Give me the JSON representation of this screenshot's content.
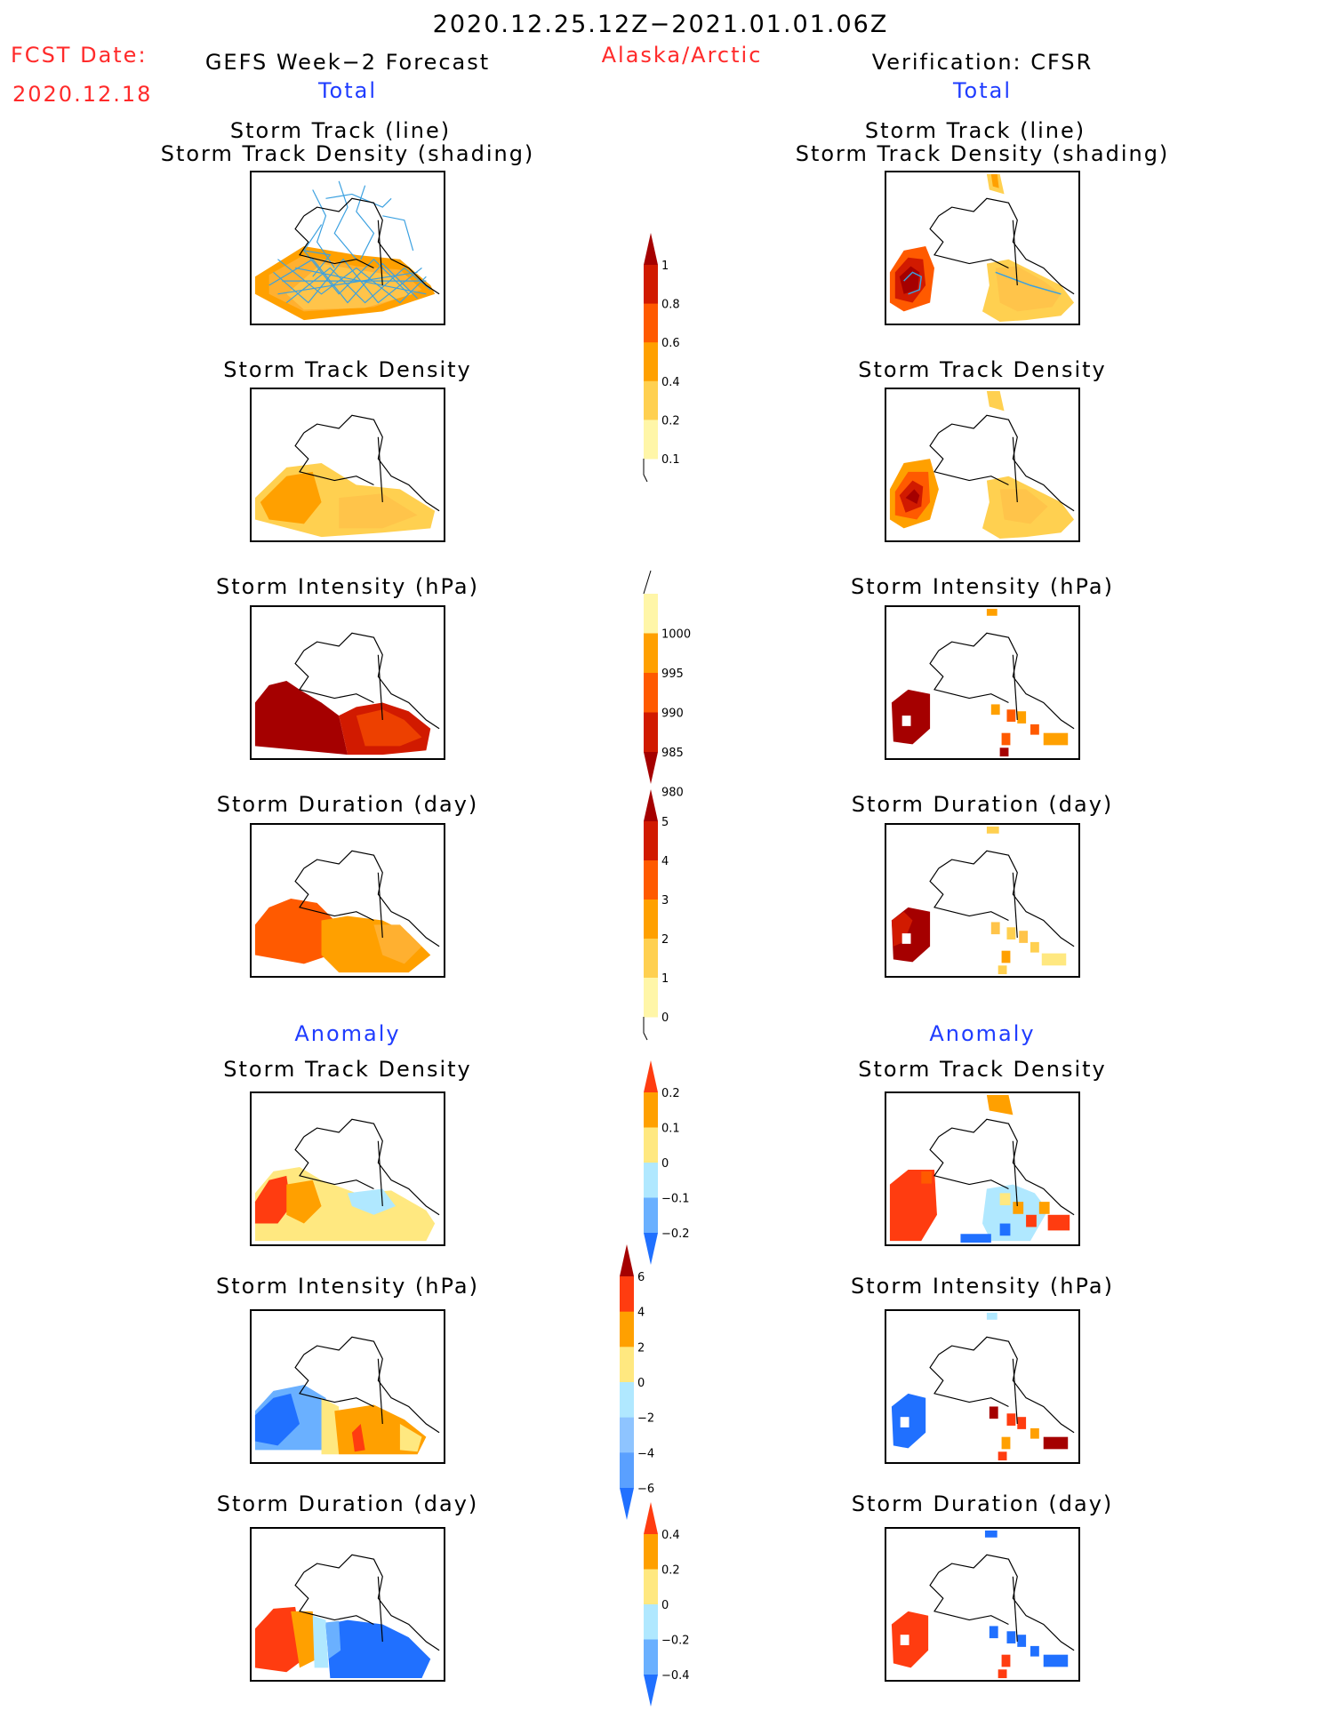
{
  "header": {
    "title": "2020.12.25.12Z−2021.01.01.06Z",
    "fcst_label": "FCST Date:",
    "fcst_date": "2020.12.18",
    "left_title": "GEFS Week−2 Forecast",
    "region": "Alaska/Arctic",
    "right_title": "Verification: CFSR"
  },
  "columns": {
    "total_label": "Total",
    "anomaly_label": "Anomaly"
  },
  "panels": {
    "track_title_1": "Storm Track (line)",
    "track_title_2": "Storm Track Density (shading)",
    "density_title": "Storm Track Density",
    "intensity_title": "Storm Intensity (hPa)",
    "duration_title": "Storm Duration (day)"
  },
  "colorbars": [
    {
      "id": "density",
      "labels": [
        "1",
        "0.8",
        "0.6",
        "0.4",
        "0.2",
        "0.1"
      ],
      "colors": [
        "#a50000",
        "#d11a00",
        "#ff5a00",
        "#ffa000",
        "#ffd050",
        "#fff6a8"
      ]
    },
    {
      "id": "intensity",
      "labels": [
        "1000",
        "995",
        "990",
        "985",
        "980"
      ],
      "colors": [
        "#fff6a8",
        "#ffa000",
        "#ff5a00",
        "#d11a00",
        "#a50000"
      ]
    },
    {
      "id": "duration",
      "labels": [
        "5",
        "4",
        "3",
        "2",
        "1",
        "0"
      ],
      "colors": [
        "#a50000",
        "#d11a00",
        "#ff5a00",
        "#ffa000",
        "#ffd050",
        "#fff6a8"
      ]
    },
    {
      "id": "anom_density",
      "labels": [
        "0.2",
        "0.1",
        "0",
        "−0.1",
        "−0.2"
      ],
      "colors": [
        "#ff3c10",
        "#ffa000",
        "#ffe880",
        "#b0e8ff",
        "#6ab0ff",
        "#2070ff"
      ]
    },
    {
      "id": "anom_intensity",
      "labels": [
        "6",
        "4",
        "2",
        "0",
        "−2",
        "−4",
        "−6"
      ],
      "colors": [
        "#a50000",
        "#ff3c10",
        "#ffa000",
        "#ffe880",
        "#b0e8ff",
        "#8ec4ff",
        "#5aa0ff",
        "#2070ff"
      ]
    },
    {
      "id": "anom_duration",
      "labels": [
        "0.4",
        "0.2",
        "0",
        "−0.2",
        "−0.4"
      ],
      "colors": [
        "#ff3c10",
        "#ffa000",
        "#ffe880",
        "#b0e8ff",
        "#6ab0ff",
        "#2070ff"
      ]
    }
  ],
  "colors": {
    "title_red": "#ff2a2a",
    "label_blue": "#1f3cff",
    "track_line": "#3aa0e0"
  }
}
